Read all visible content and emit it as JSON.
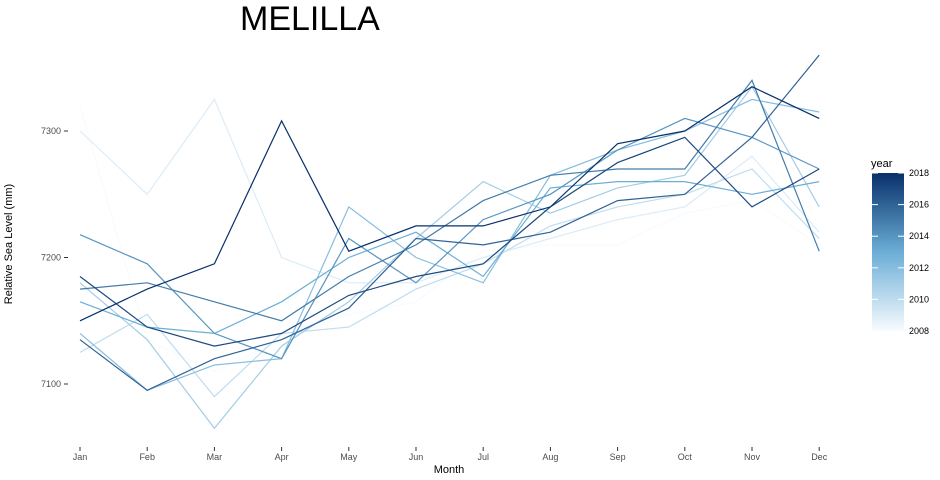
{
  "chart_data": {
    "type": "line",
    "title": "MELILLA",
    "xlabel": "Month",
    "ylabel": "Relative Sea Level (mm)",
    "categories": [
      "Jan",
      "Feb",
      "Mar",
      "Apr",
      "May",
      "Jun",
      "Jul",
      "Aug",
      "Sep",
      "Oct",
      "Nov",
      "Dec"
    ],
    "yticks": [
      7100,
      7200,
      7300
    ],
    "ylim": [
      7045,
      7365
    ],
    "grid": false,
    "legend": {
      "title": "year",
      "position": "right",
      "type": "colorbar",
      "range": [
        2008,
        2018
      ],
      "ticks": [
        2008,
        2010,
        2012,
        2014,
        2016,
        2018
      ],
      "color_low": "#f7fbff",
      "color_high": "#08306b"
    },
    "series": [
      {
        "year": 2008,
        "values": [
          7320,
          7135,
          7110,
          7135,
          7155,
          7165,
          7205,
          7210,
          7210,
          7235,
          7245,
          7210
        ]
      },
      {
        "year": 2009,
        "values": [
          7300,
          7250,
          7325,
          7200,
          7180,
          7180,
          7200,
          7215,
          7230,
          7240,
          7280,
          7220
        ]
      },
      {
        "year": 2010,
        "values": [
          7125,
          7155,
          7090,
          7140,
          7145,
          7175,
          7195,
          7225,
          7240,
          7250,
          7270,
          7215
        ]
      },
      {
        "year": 2011,
        "values": [
          7180,
          7135,
          7065,
          7130,
          7165,
          7215,
          7260,
          7235,
          7255,
          7265,
          7335,
          7240
        ]
      },
      {
        "year": 2012,
        "values": [
          7140,
          7095,
          7115,
          7120,
          7240,
          7200,
          7180,
          7265,
          7285,
          7300,
          7325,
          7315
        ]
      },
      {
        "year": 2013,
        "values": [
          7165,
          7145,
          7140,
          7165,
          7200,
          7220,
          7185,
          7255,
          7260,
          7260,
          7250,
          7260
        ]
      },
      {
        "year": 2014,
        "values": [
          7218,
          7195,
          7140,
          7120,
          7215,
          7180,
          7230,
          7250,
          7285,
          7310,
          7295,
          7270
        ]
      },
      {
        "year": 2015,
        "values": [
          7175,
          7180,
          7165,
          7150,
          7185,
          7210,
          7245,
          7265,
          7270,
          7270,
          7340,
          7205
        ]
      },
      {
        "year": 2016,
        "values": [
          7135,
          7095,
          7120,
          7135,
          7160,
          7215,
          7210,
          7220,
          7245,
          7250,
          7295,
          7360
        ]
      },
      {
        "year": 2017,
        "values": [
          7185,
          7145,
          7130,
          7140,
          7170,
          7185,
          7195,
          7240,
          7275,
          7295,
          7240,
          7270
        ]
      },
      {
        "year": 2018,
        "values": [
          7150,
          7175,
          7195,
          7308,
          7205,
          7225,
          7225,
          7240,
          7290,
          7300,
          7335,
          7310
        ]
      }
    ]
  }
}
